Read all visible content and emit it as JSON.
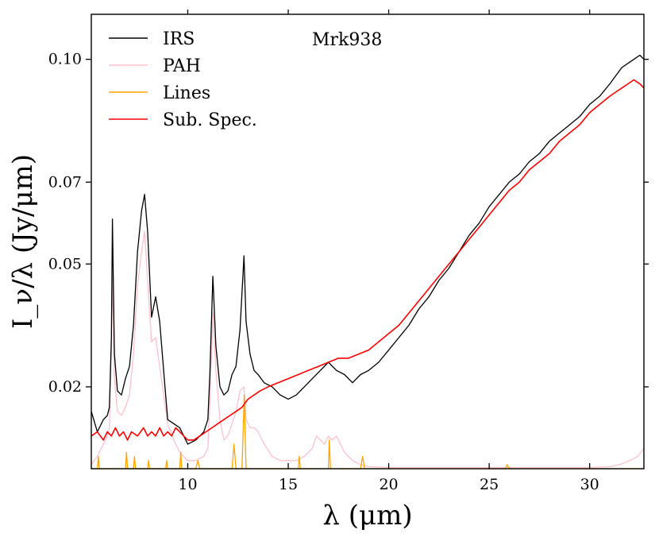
{
  "chart_data": {
    "type": "line",
    "title": "Mrk938",
    "xlabel": "λ (μm)",
    "ylabel": "I_ν/λ (Jy/μm)",
    "xlim": [
      5.2,
      32.7
    ],
    "ylim": [
      0.0,
      0.111
    ],
    "xticks": [
      10,
      15,
      20,
      25,
      30
    ],
    "yticks": [
      0.02,
      0.05,
      0.07,
      0.1
    ],
    "ytick_labels": [
      "0.02",
      "0.05",
      "0.07",
      "0.10"
    ],
    "grid": false,
    "legend_position": "top-left",
    "series": [
      {
        "name": "IRS",
        "color": "#000000",
        "x": [
          5.2,
          5.5,
          5.8,
          6.0,
          6.1,
          6.2,
          6.25,
          6.35,
          6.5,
          6.7,
          6.9,
          7.1,
          7.3,
          7.5,
          7.7,
          7.85,
          8.0,
          8.2,
          8.4,
          8.6,
          8.8,
          9.0,
          9.3,
          9.6,
          10.0,
          10.4,
          10.8,
          11.0,
          11.1,
          11.25,
          11.4,
          11.6,
          11.8,
          12.0,
          12.2,
          12.4,
          12.6,
          12.8,
          12.9,
          13.1,
          13.3,
          13.5,
          13.8,
          14.2,
          14.6,
          15.0,
          15.4,
          15.8,
          16.2,
          16.6,
          17.0,
          17.4,
          17.8,
          18.2,
          18.6,
          19.0,
          19.5,
          20.0,
          20.5,
          21.0,
          21.5,
          22.0,
          22.5,
          23.0,
          23.5,
          24.0,
          24.5,
          25.0,
          25.5,
          26.0,
          26.5,
          27.0,
          27.5,
          28.0,
          28.5,
          29.0,
          29.5,
          30.0,
          30.5,
          31.0,
          31.3,
          31.6,
          31.9,
          32.2,
          32.5,
          32.7
        ],
        "values": [
          0.014,
          0.009,
          0.012,
          0.013,
          0.015,
          0.032,
          0.061,
          0.028,
          0.019,
          0.018,
          0.022,
          0.025,
          0.035,
          0.053,
          0.063,
          0.067,
          0.058,
          0.037,
          0.042,
          0.036,
          0.024,
          0.012,
          0.011,
          0.01,
          0.006,
          0.007,
          0.009,
          0.012,
          0.023,
          0.047,
          0.03,
          0.02,
          0.018,
          0.019,
          0.023,
          0.025,
          0.034,
          0.052,
          0.036,
          0.028,
          0.024,
          0.023,
          0.021,
          0.02,
          0.018,
          0.017,
          0.018,
          0.02,
          0.022,
          0.024,
          0.026,
          0.024,
          0.023,
          0.021,
          0.023,
          0.024,
          0.026,
          0.029,
          0.032,
          0.035,
          0.039,
          0.042,
          0.046,
          0.049,
          0.053,
          0.057,
          0.06,
          0.064,
          0.067,
          0.07,
          0.072,
          0.075,
          0.077,
          0.08,
          0.082,
          0.084,
          0.086,
          0.089,
          0.091,
          0.094,
          0.096,
          0.098,
          0.099,
          0.1,
          0.101,
          0.1
        ]
      },
      {
        "name": "PAH",
        "color": "#ffc0cb",
        "x": [
          5.2,
          5.5,
          5.8,
          6.0,
          6.1,
          6.2,
          6.25,
          6.35,
          6.5,
          6.7,
          6.9,
          7.1,
          7.3,
          7.5,
          7.7,
          7.85,
          8.0,
          8.2,
          8.4,
          8.6,
          8.8,
          9.0,
          9.3,
          9.6,
          10.0,
          10.4,
          10.8,
          11.0,
          11.1,
          11.25,
          11.4,
          11.6,
          11.8,
          12.0,
          12.2,
          12.4,
          12.6,
          12.8,
          12.9,
          13.1,
          13.3,
          13.5,
          13.8,
          14.2,
          14.6,
          15.0,
          15.4,
          15.8,
          16.2,
          16.4,
          16.6,
          16.8,
          17.0,
          17.2,
          17.4,
          17.6,
          17.8,
          18.2,
          18.6,
          19.0,
          20.0,
          22.0,
          24.0,
          26.0,
          28.0,
          30.0,
          31.0,
          31.5,
          32.0,
          32.4,
          32.7
        ],
        "values": [
          0.001,
          0.003,
          0.006,
          0.008,
          0.01,
          0.03,
          0.048,
          0.022,
          0.014,
          0.013,
          0.015,
          0.018,
          0.028,
          0.045,
          0.053,
          0.058,
          0.046,
          0.031,
          0.032,
          0.025,
          0.018,
          0.011,
          0.007,
          0.004,
          0.002,
          0.002,
          0.003,
          0.005,
          0.016,
          0.038,
          0.024,
          0.012,
          0.007,
          0.008,
          0.011,
          0.014,
          0.019,
          0.02,
          0.012,
          0.01,
          0.01,
          0.009,
          0.006,
          0.003,
          0.002,
          0.002,
          0.002,
          0.003,
          0.005,
          0.008,
          0.007,
          0.006,
          0.008,
          0.007,
          0.008,
          0.006,
          0.004,
          0.002,
          0.001,
          0.0005,
          0.0003,
          0.0003,
          0.0003,
          0.0003,
          0.0003,
          0.0003,
          0.0005,
          0.001,
          0.002,
          0.003,
          0.005
        ]
      },
      {
        "name": "Lines",
        "color": "#ffa500",
        "x": [
          5.2,
          5.5,
          5.55,
          5.6,
          6.0,
          6.9,
          6.95,
          7.0,
          7.3,
          7.35,
          7.4,
          7.6,
          8.0,
          8.05,
          8.1,
          8.9,
          8.95,
          9.0,
          9.6,
          9.65,
          9.7,
          10.4,
          10.5,
          10.6,
          12.2,
          12.3,
          12.4,
          12.7,
          12.81,
          12.9,
          13.2,
          15.5,
          15.55,
          15.6,
          17.0,
          17.04,
          17.1,
          18.6,
          18.7,
          18.8,
          22.0,
          25.8,
          25.9,
          26.0,
          32.7
        ],
        "values": [
          0.0,
          0.0,
          0.003,
          0.0,
          0.0,
          0.0,
          0.004,
          0.0,
          0.0,
          0.003,
          0.0,
          0.0,
          0.0,
          0.002,
          0.0,
          0.0,
          0.002,
          0.0,
          0.0,
          0.004,
          0.0,
          0.0,
          0.002,
          0.0,
          0.0,
          0.006,
          0.0,
          0.0,
          0.018,
          0.0,
          0.0,
          0.0,
          0.003,
          0.0,
          0.0,
          0.007,
          0.0,
          0.0,
          0.003,
          0.0,
          0.0,
          0.0,
          0.001,
          0.0,
          0.0
        ]
      },
      {
        "name": "Sub. Spec.",
        "color": "#ff0000",
        "x": [
          5.2,
          5.5,
          5.8,
          6.0,
          6.2,
          6.4,
          6.6,
          6.8,
          7.0,
          7.2,
          7.5,
          7.8,
          8.0,
          8.2,
          8.4,
          8.6,
          8.8,
          9.0,
          9.2,
          9.4,
          9.6,
          9.8,
          10.0,
          10.3,
          10.6,
          10.9,
          11.2,
          11.5,
          11.8,
          12.1,
          12.4,
          12.7,
          13.0,
          13.3,
          13.6,
          14.0,
          14.5,
          15.0,
          15.5,
          16.0,
          16.5,
          17.0,
          17.5,
          18.0,
          18.5,
          19.0,
          19.5,
          20.0,
          20.5,
          21.0,
          21.5,
          22.0,
          22.5,
          23.0,
          23.5,
          24.0,
          24.5,
          25.0,
          25.5,
          26.0,
          26.5,
          27.0,
          27.5,
          28.0,
          28.5,
          29.0,
          29.5,
          30.0,
          30.5,
          31.0,
          31.3,
          31.6,
          31.9,
          32.2,
          32.5,
          32.7
        ],
        "values": [
          0.008,
          0.009,
          0.007,
          0.009,
          0.008,
          0.01,
          0.008,
          0.009,
          0.007,
          0.009,
          0.008,
          0.01,
          0.008,
          0.009,
          0.008,
          0.01,
          0.008,
          0.009,
          0.008,
          0.01,
          0.009,
          0.008,
          0.007,
          0.007,
          0.008,
          0.009,
          0.01,
          0.011,
          0.012,
          0.013,
          0.014,
          0.015,
          0.017,
          0.018,
          0.019,
          0.02,
          0.021,
          0.022,
          0.023,
          0.024,
          0.025,
          0.026,
          0.027,
          0.027,
          0.028,
          0.029,
          0.031,
          0.033,
          0.035,
          0.038,
          0.041,
          0.044,
          0.047,
          0.05,
          0.053,
          0.056,
          0.059,
          0.062,
          0.065,
          0.068,
          0.07,
          0.073,
          0.075,
          0.077,
          0.08,
          0.082,
          0.084,
          0.087,
          0.089,
          0.091,
          0.092,
          0.093,
          0.094,
          0.095,
          0.094,
          0.093
        ]
      }
    ]
  }
}
